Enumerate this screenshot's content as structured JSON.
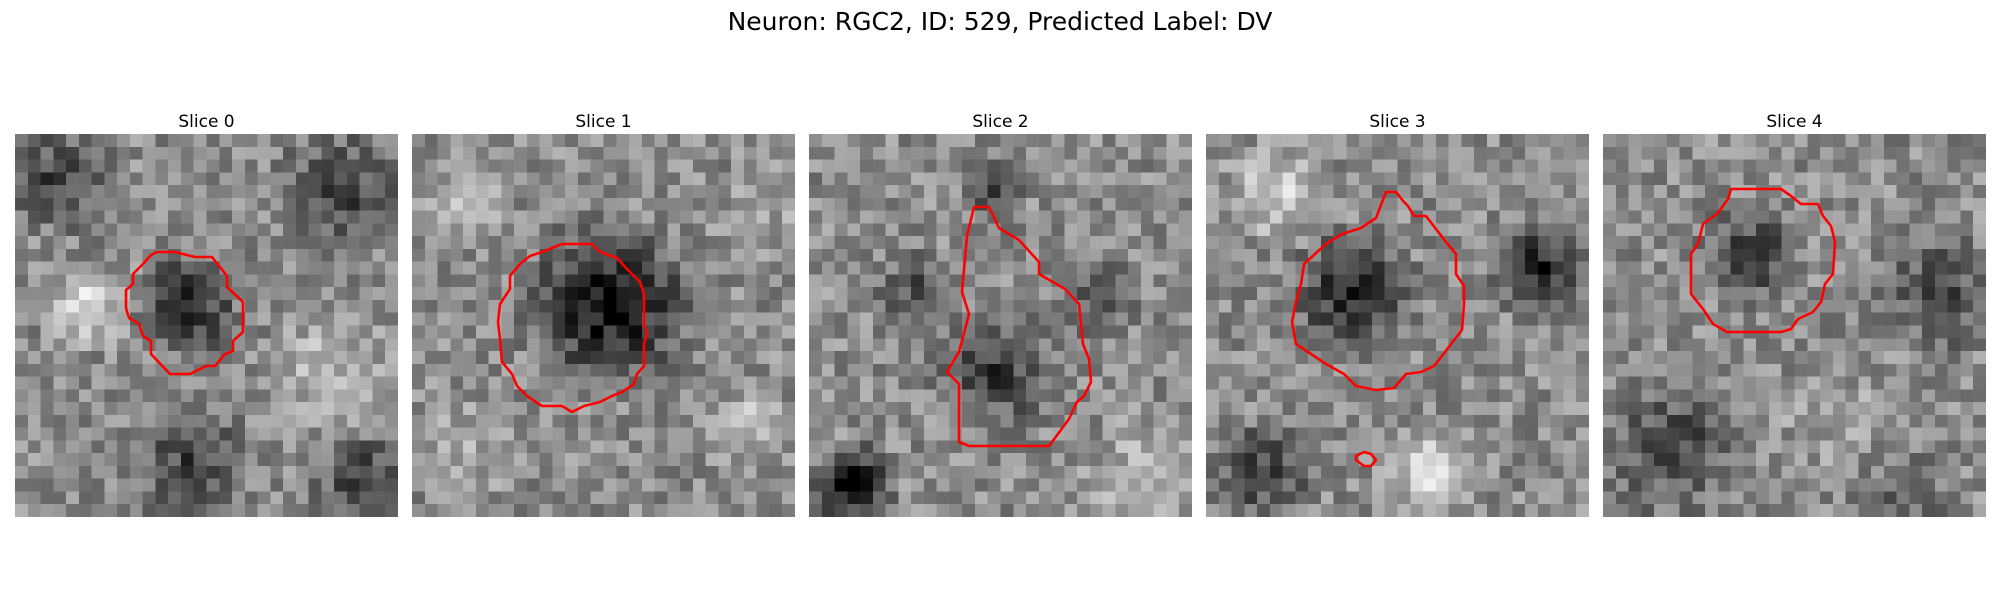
{
  "figure": {
    "title": "Neuron: RGC2, ID: 529, Predicted Label: DV",
    "contour_color": "#ff0000"
  },
  "slices": [
    {
      "title": "Slice 0"
    },
    {
      "title": "Slice 1"
    },
    {
      "title": "Slice 2"
    },
    {
      "title": "Slice 3"
    },
    {
      "title": "Slice 4"
    }
  ]
}
